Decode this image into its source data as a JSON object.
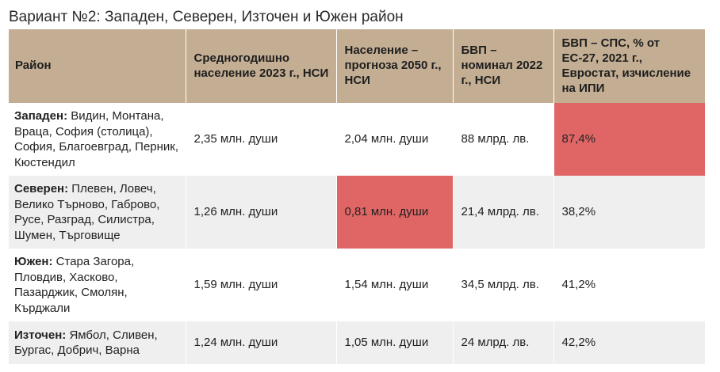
{
  "title": "Вариант №2: Западен, Северен, Източен и Южен район",
  "table": {
    "headers": [
      "Район",
      "Средногодишно население 2023 г., НСИ",
      "Население – прогноза 2050 г., НСИ",
      "БВП – номинал 2022 г., НСИ",
      "БВП – СПС, % от ЕС-27, 2021 г., Евростат, изчисление на ИПИ"
    ],
    "rows": [
      {
        "region_name": "Западен:",
        "region_list": "Видин, Монтана, Враца, София (столица), София, Благоевград, Перник, Кюстендил",
        "population_2023": "2,35 млн. души",
        "population_2050": "2,04 млн. души",
        "gdp_nominal": "88 млрд. лв.",
        "gdp_pps": "87,4%"
      },
      {
        "region_name": "Северен:",
        "region_list": "Плевен, Ловеч, Велико Търново, Габрово, Русе, Разград, Силистра, Шумен, Търговище",
        "population_2023": "1,26 млн. души",
        "population_2050": "0,81 млн. души",
        "gdp_nominal": "21,4 млрд. лв.",
        "gdp_pps": "38,2%"
      },
      {
        "region_name": "Южен:",
        "region_list": "Стара Загора, Пловдив, Хасково, Пазарджик, Смолян, Кърджали",
        "population_2023": "1,59 млн. души",
        "population_2050": "1,54 млн. души",
        "gdp_nominal": "34,5 млрд. лв.",
        "gdp_pps": "41,2%"
      },
      {
        "region_name": "Източен:",
        "region_list": "Ямбол, Сливен, Бургас, Добрич, Варна",
        "population_2023": "1,24 млн. души",
        "population_2050": "1,05 млн. души",
        "gdp_nominal": "24 млрд. лв.",
        "gdp_pps": "42,2%"
      }
    ]
  },
  "colors": {
    "header_bg": "#c4ae93",
    "highlight": "#e06666",
    "row_alt": "#efefef"
  }
}
